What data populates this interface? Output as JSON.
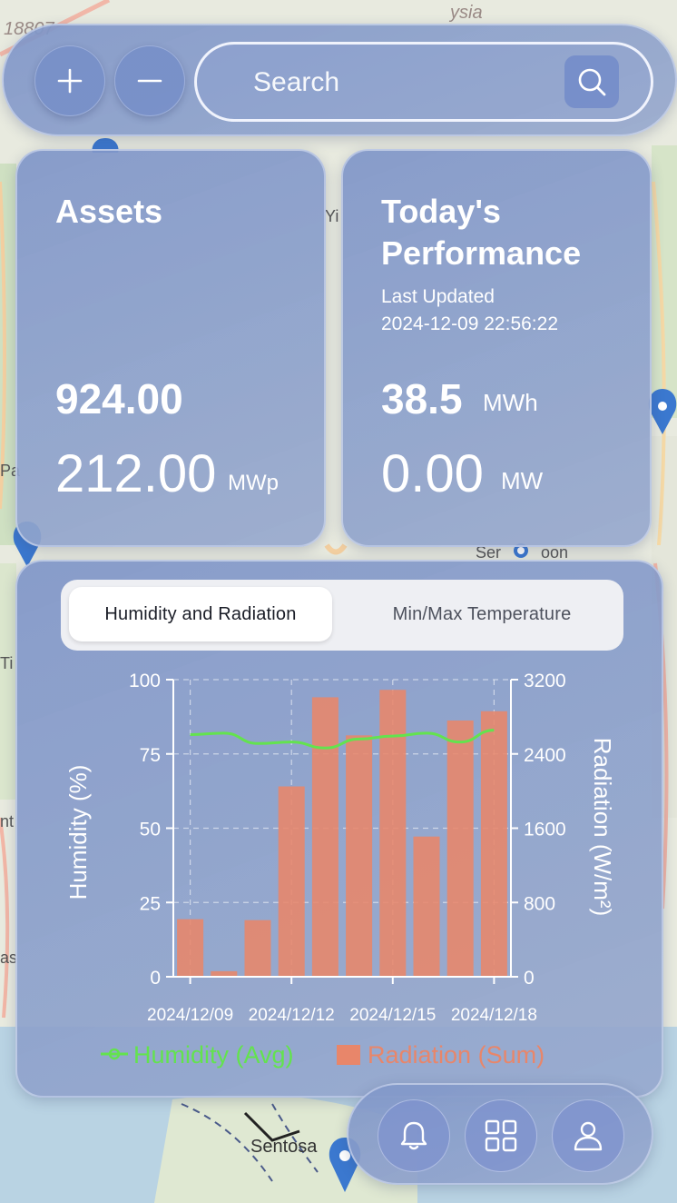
{
  "colors": {
    "humidity": "#63e34e",
    "radiation": "#e8866a",
    "panel": "#8096c8"
  },
  "map": {
    "labels": [
      "18807",
      "ysia",
      "Yi",
      "Pa",
      "Ti",
      "nt",
      "as",
      "Ser",
      "oon",
      "Sentosa"
    ]
  },
  "toolbar": {
    "zoom_in_icon": "plus-icon",
    "zoom_out_icon": "minus-icon",
    "search_placeholder": "Search",
    "search_icon": "search-icon"
  },
  "assets": {
    "title": "Assets",
    "count": "924.00",
    "capacity": "212.00",
    "capacity_unit": "MWp"
  },
  "performance": {
    "title_line1": "Today's",
    "title_line2": "Performance",
    "last_updated_label": "Last Updated",
    "last_updated_value": "2024-12-09 22:56:22",
    "energy": "38.5",
    "energy_unit": "MWh",
    "power": "0.00",
    "power_unit": "MW"
  },
  "tabs": [
    {
      "label": "Humidity and Radiation",
      "active": true
    },
    {
      "label": "Min/Max Temperature",
      "active": false
    }
  ],
  "chart_data": {
    "type": "bar",
    "categories": [
      "2024/12/09",
      "2024/12/10",
      "2024/12/11",
      "2024/12/12",
      "2024/12/13",
      "2024/12/14",
      "2024/12/15",
      "2024/12/16",
      "2024/12/17",
      "2024/12/18"
    ],
    "x_tick_labels": [
      "2024/12/09",
      "2024/12/12",
      "2024/12/15",
      "2024/12/18"
    ],
    "series": [
      {
        "name": "Humidity (Avg)",
        "type": "line",
        "axis": "left",
        "values": [
          81.5,
          82,
          78.5,
          79,
          77,
          80,
          81,
          82,
          79,
          83
        ]
      },
      {
        "name": "Radiation (Sum)",
        "type": "bar",
        "axis": "right",
        "values": [
          620,
          60,
          610,
          2050,
          3010,
          2600,
          3090,
          1510,
          2760,
          2860
        ]
      }
    ],
    "ylabel_left": "Humidity (%)",
    "ylabel_right": "Radiation (W/m²)",
    "ylim_left": [
      0,
      100
    ],
    "ylim_right": [
      0,
      3200
    ],
    "yticks_left": [
      "0",
      "25",
      "50",
      "75",
      "100"
    ],
    "yticks_right": [
      "0",
      "800",
      "1600",
      "2400",
      "3200"
    ],
    "grid": true,
    "legend": "bottom"
  },
  "nav": {
    "notifications_icon": "bell-icon",
    "dashboard_icon": "grid-icon",
    "profile_icon": "user-icon"
  }
}
